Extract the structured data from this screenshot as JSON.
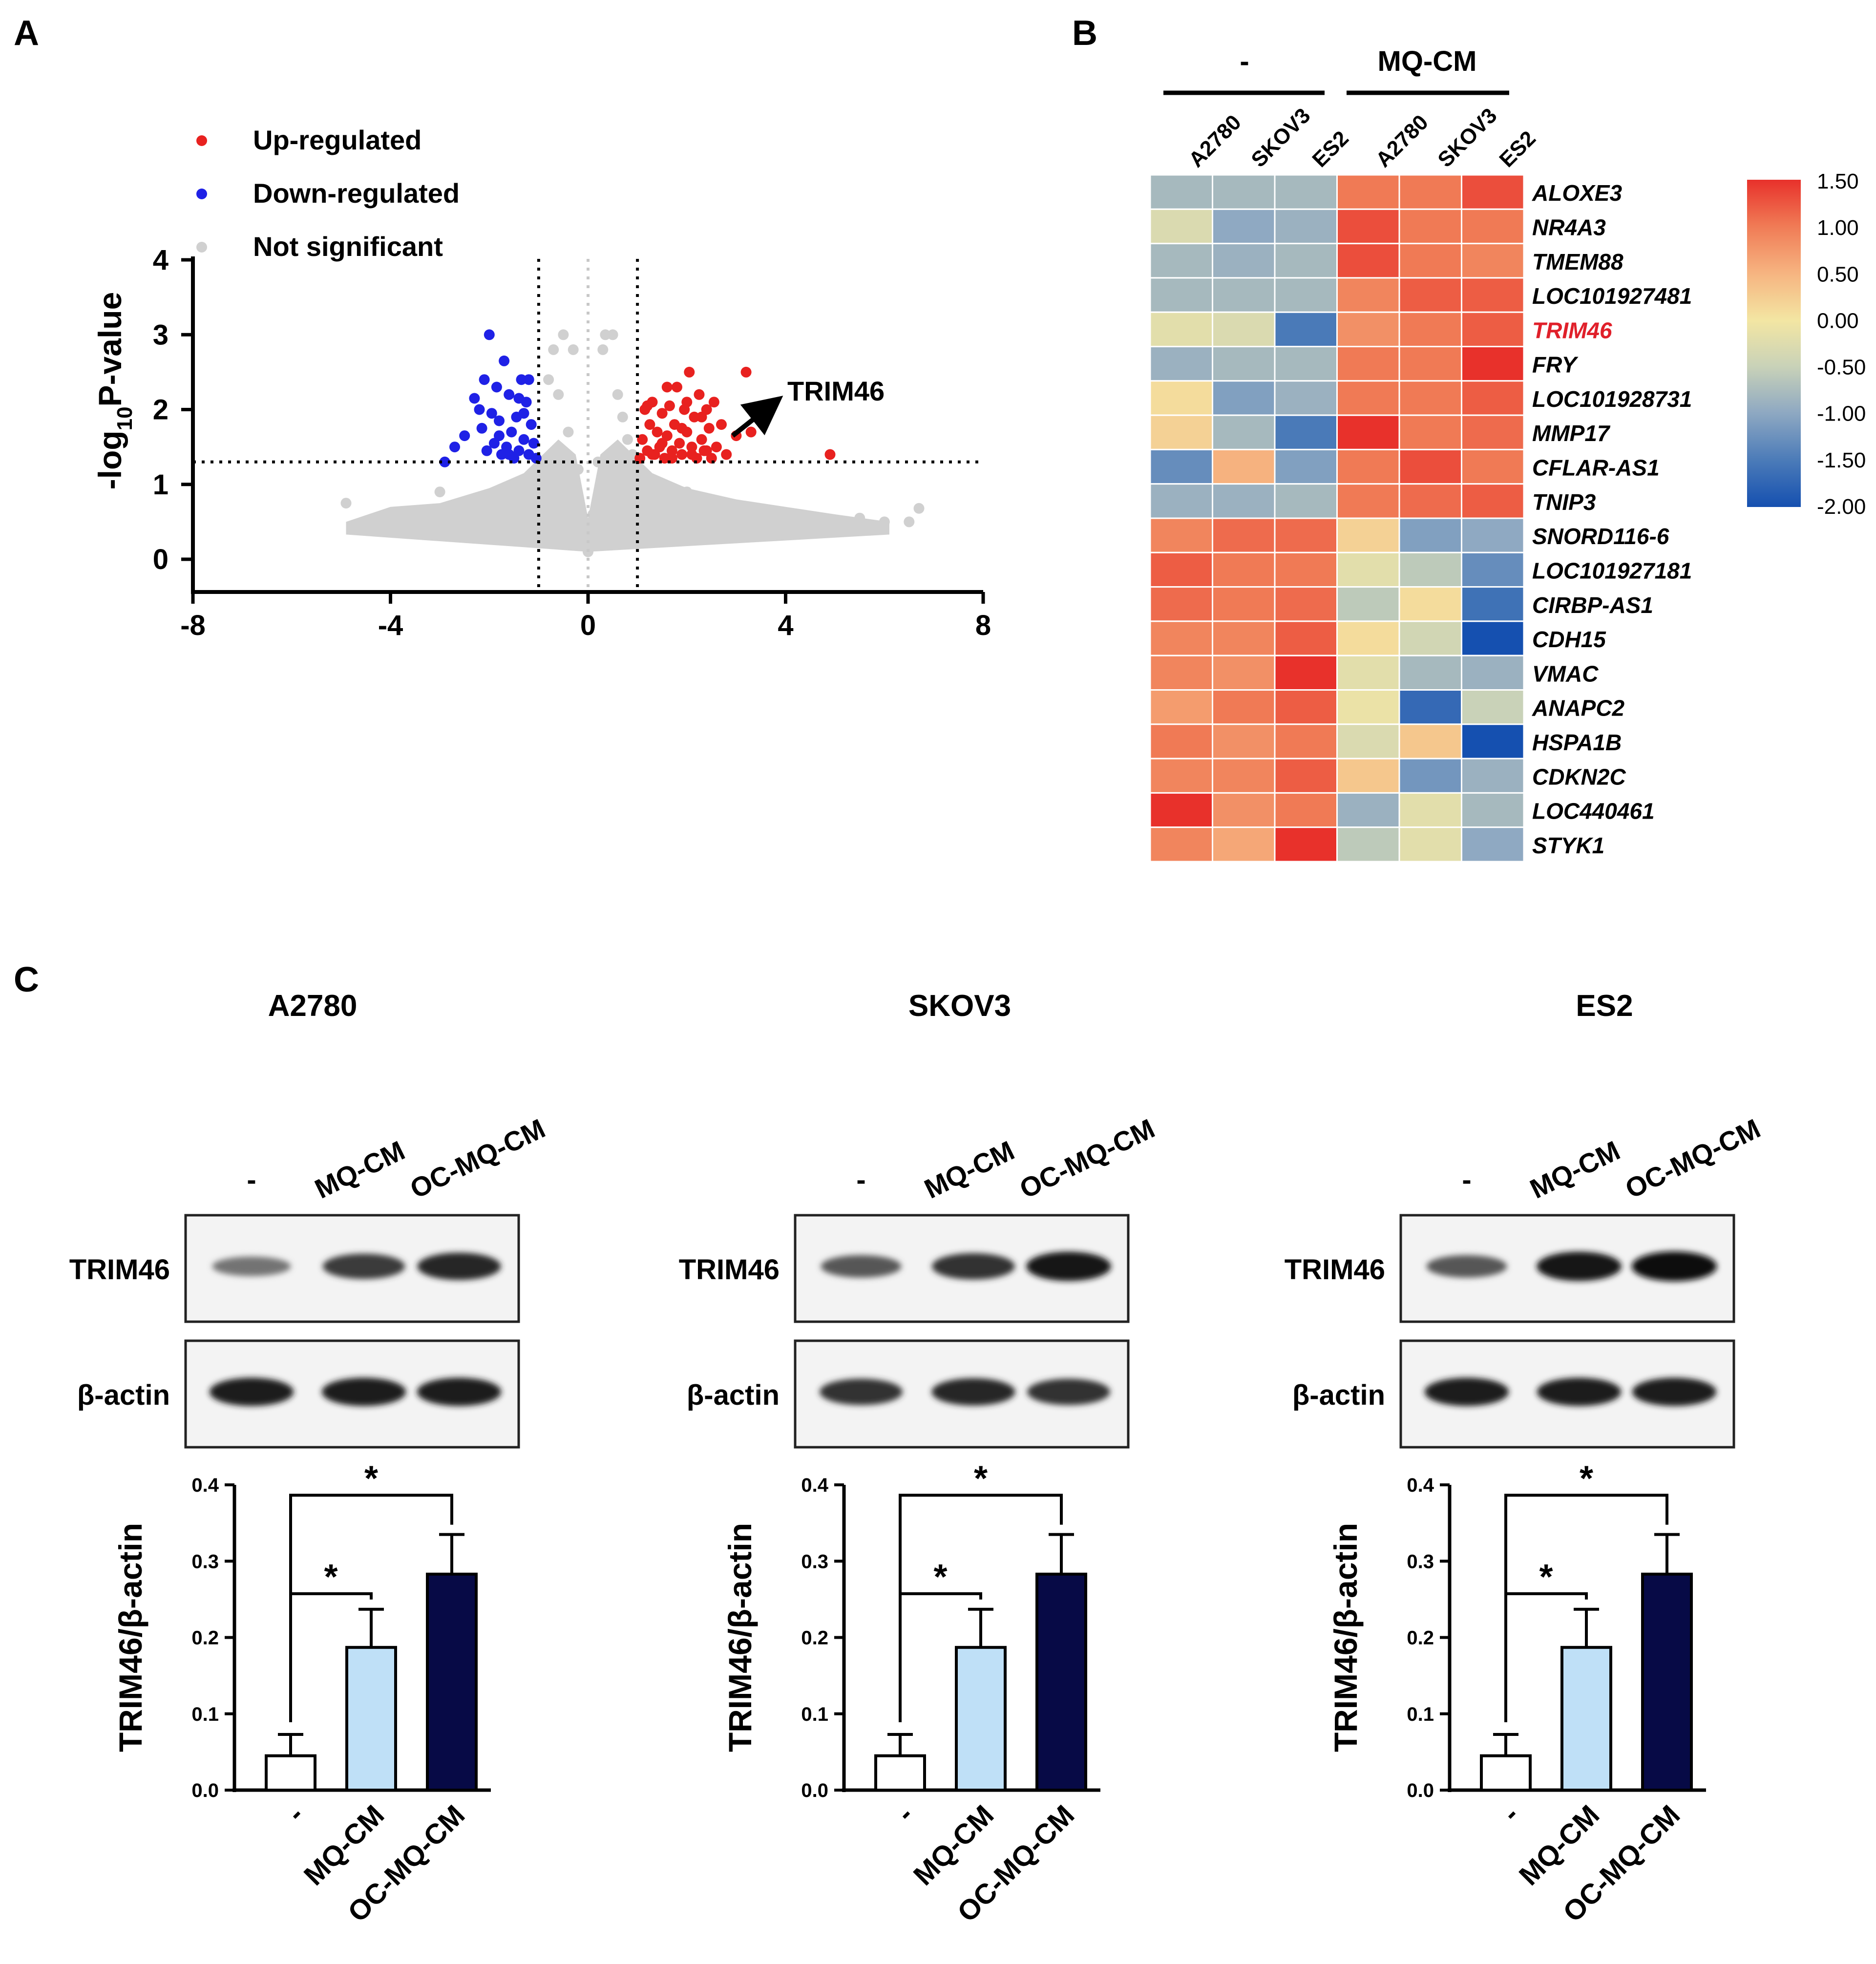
{
  "colors": {
    "up": "#e8211f",
    "down": "#1f21e6",
    "ns": "#d0d0d0",
    "bar_control": "#ffffff",
    "bar_mq": "#bfe0f7",
    "bar_oc": "#070a46",
    "red_label": "#e0202a"
  },
  "panel_labels": {
    "a": "A",
    "b": "B",
    "c": "C"
  },
  "chart_data": [
    {
      "id": "volcano",
      "type": "scatter",
      "title": "",
      "xlabel": "",
      "ylabel_main": "-log",
      "ylabel_sub": "10",
      "ylabel_rest": "P-value",
      "xlim": [
        -8,
        8
      ],
      "ylim": [
        -0.5,
        4.0
      ],
      "xticks": [
        -8,
        -4,
        0,
        4,
        8
      ],
      "yticks": [
        0,
        1,
        2,
        3,
        4
      ],
      "xtick_labels": [
        "-8",
        "-4",
        "0",
        "4",
        "8"
      ],
      "ytick_labels": [
        "0",
        "1",
        "2",
        "3",
        "4"
      ],
      "threshold_fc": 1,
      "threshold_p": 1.3,
      "legend": [
        {
          "label": "Up-regulated",
          "color": "#e8211f"
        },
        {
          "label": "Down-regulated",
          "color": "#1f21e6"
        },
        {
          "label": "Not significant",
          "color": "#d0d0d0"
        }
      ],
      "annotation": {
        "text": "TRIM46",
        "x": 2.8,
        "y": 1.7
      },
      "series": [
        {
          "name": "Up-regulated",
          "points": [
            [
              1.05,
              1.35
            ],
            [
              1.1,
              1.6
            ],
            [
              1.15,
              2.0
            ],
            [
              1.2,
              1.45
            ],
            [
              1.25,
              1.8
            ],
            [
              1.3,
              2.1
            ],
            [
              1.35,
              1.4
            ],
            [
              1.4,
              1.7
            ],
            [
              1.45,
              1.5
            ],
            [
              1.5,
              1.95
            ],
            [
              1.55,
              1.35
            ],
            [
              1.6,
              1.65
            ],
            [
              1.65,
              2.05
            ],
            [
              1.7,
              1.45
            ],
            [
              1.75,
              1.8
            ],
            [
              1.8,
              2.3
            ],
            [
              1.85,
              1.55
            ],
            [
              1.9,
              1.4
            ],
            [
              1.95,
              2.0
            ],
            [
              2.0,
              1.7
            ],
            [
              2.05,
              2.5
            ],
            [
              2.1,
              1.5
            ],
            [
              2.15,
              1.9
            ],
            [
              2.2,
              1.35
            ],
            [
              2.25,
              2.2
            ],
            [
              2.3,
              1.6
            ],
            [
              2.35,
              1.45
            ],
            [
              2.4,
              2.0
            ],
            [
              2.45,
              1.75
            ],
            [
              2.5,
              1.35
            ],
            [
              2.55,
              2.1
            ],
            [
              2.6,
              1.5
            ],
            [
              2.7,
              1.8
            ],
            [
              2.8,
              1.4
            ],
            [
              3.0,
              1.65
            ],
            [
              3.2,
              2.5
            ],
            [
              3.3,
              1.7
            ],
            [
              1.3,
              1.4
            ],
            [
              1.5,
              1.55
            ],
            [
              1.7,
              1.35
            ],
            [
              1.9,
              1.75
            ],
            [
              2.1,
              1.4
            ],
            [
              2.3,
              1.9
            ],
            [
              1.2,
              2.05
            ],
            [
              1.6,
              2.3
            ],
            [
              2.0,
              2.1
            ],
            [
              2.4,
              1.45
            ],
            [
              4.9,
              1.4
            ]
          ]
        },
        {
          "name": "Down-regulated",
          "points": [
            [
              -1.05,
              1.35
            ],
            [
              -1.1,
              1.55
            ],
            [
              -1.15,
              1.8
            ],
            [
              -1.2,
              1.4
            ],
            [
              -1.25,
              2.1
            ],
            [
              -1.3,
              1.6
            ],
            [
              -1.35,
              2.4
            ],
            [
              -1.4,
              1.45
            ],
            [
              -1.45,
              1.9
            ],
            [
              -1.5,
              1.35
            ],
            [
              -1.55,
              1.7
            ],
            [
              -1.6,
              2.2
            ],
            [
              -1.65,
              1.5
            ],
            [
              -1.7,
              2.65
            ],
            [
              -1.75,
              1.4
            ],
            [
              -1.8,
              1.85
            ],
            [
              -1.85,
              2.3
            ],
            [
              -1.9,
              1.55
            ],
            [
              -1.95,
              1.95
            ],
            [
              -2.0,
              3.0
            ],
            [
              -2.05,
              1.45
            ],
            [
              -2.1,
              2.4
            ],
            [
              -2.15,
              1.75
            ],
            [
              -2.2,
              2.0
            ],
            [
              -2.3,
              2.15
            ],
            [
              -2.5,
              1.65
            ],
            [
              -2.7,
              1.5
            ],
            [
              -2.9,
              1.3
            ],
            [
              -1.2,
              2.4
            ],
            [
              -1.4,
              2.15
            ],
            [
              -1.6,
              1.4
            ],
            [
              -1.8,
              1.65
            ],
            [
              -1.3,
              1.95
            ]
          ]
        },
        {
          "name": "Not significant",
          "points": [
            [
              -0.9,
              1.2
            ],
            [
              -0.7,
              2.8
            ],
            [
              -0.5,
              3.0
            ],
            [
              -0.3,
              2.8
            ],
            [
              0.3,
              2.8
            ],
            [
              0.35,
              3.0
            ],
            [
              0.5,
              3.0
            ],
            [
              0.6,
              2.2
            ],
            [
              0.7,
              1.9
            ],
            [
              0.8,
              1.6
            ],
            [
              0.9,
              1.4
            ],
            [
              -0.8,
              2.4
            ],
            [
              -0.6,
              2.2
            ],
            [
              -0.4,
              1.7
            ],
            [
              -0.2,
              1.2
            ],
            [
              0.2,
              1.3
            ],
            [
              0.4,
              1.1
            ],
            [
              0.1,
              0.6
            ],
            [
              -0.1,
              0.5
            ],
            [
              0.0,
              0.1
            ],
            [
              -4.9,
              0.75
            ],
            [
              -4.5,
              0.4
            ],
            [
              -4.3,
              0.5
            ],
            [
              -3.5,
              0.6
            ],
            [
              -3.0,
              0.9
            ],
            [
              -2.5,
              0.7
            ],
            [
              -2.0,
              0.8
            ],
            [
              -1.5,
              1.0
            ],
            [
              -1.0,
              0.9
            ],
            [
              1.0,
              0.8
            ],
            [
              1.5,
              1.0
            ],
            [
              2.0,
              0.9
            ],
            [
              2.5,
              0.8
            ],
            [
              3.0,
              0.7
            ],
            [
              3.5,
              0.6
            ],
            [
              4.0,
              0.55
            ],
            [
              4.5,
              0.5
            ],
            [
              5.0,
              0.45
            ],
            [
              5.5,
              0.55
            ],
            [
              6.0,
              0.5
            ],
            [
              6.5,
              0.5
            ],
            [
              6.7,
              0.68
            ],
            [
              -3.0,
              0.5
            ],
            [
              -2.0,
              0.55
            ],
            [
              2.0,
              0.6
            ],
            [
              3.0,
              0.55
            ]
          ]
        }
      ]
    },
    {
      "id": "heatmap",
      "type": "heatmap",
      "group_labels": [
        "-",
        "MQ-CM"
      ],
      "columns": [
        "A2780",
        "SKOV3",
        "ES2",
        "A2780",
        "SKOV3",
        "ES2"
      ],
      "rows": [
        "ALOXE3",
        "NR4A3",
        "TMEM88",
        "LOC101927481",
        "TRIM46",
        "FRY",
        "LOC101928731",
        "MMP17",
        "CFLAR-AS1",
        "TNIP3",
        "SNORD116-6",
        "LOC101927181",
        "CIRBP-AS1",
        "CDH15",
        "VMAC",
        "ANAPC2",
        "HSPA1B",
        "CDKN2C",
        "LOC440461",
        "STYK1"
      ],
      "highlight_row": "TRIM46",
      "values": [
        [
          -0.8,
          -0.8,
          -0.8,
          1.0,
          1.0,
          1.3
        ],
        [
          -0.3,
          -1.0,
          -0.9,
          1.3,
          1.0,
          1.0
        ],
        [
          -0.8,
          -0.9,
          -0.8,
          1.3,
          1.0,
          0.9
        ],
        [
          -0.8,
          -0.8,
          -0.8,
          0.9,
          1.2,
          1.2
        ],
        [
          -0.2,
          -0.3,
          -1.5,
          0.8,
          1.0,
          1.2
        ],
        [
          -0.9,
          -0.8,
          -0.8,
          1.0,
          1.0,
          1.5
        ],
        [
          0.1,
          -1.1,
          -0.9,
          1.0,
          1.0,
          1.2
        ],
        [
          0.2,
          -0.8,
          -1.5,
          1.5,
          1.0,
          1.1
        ],
        [
          -1.3,
          0.5,
          -1.1,
          1.0,
          1.3,
          1.0
        ],
        [
          -0.9,
          -0.9,
          -0.8,
          1.0,
          1.1,
          1.2
        ],
        [
          0.9,
          1.1,
          1.1,
          0.2,
          -1.1,
          -1.0
        ],
        [
          1.2,
          1.0,
          1.0,
          -0.2,
          -0.6,
          -1.3
        ],
        [
          1.1,
          1.0,
          1.1,
          -0.6,
          0.1,
          -1.6
        ],
        [
          0.9,
          0.9,
          1.2,
          0.1,
          -0.4,
          -2.0
        ],
        [
          0.9,
          0.8,
          1.5,
          -0.2,
          -0.8,
          -0.9
        ],
        [
          0.7,
          1.0,
          1.2,
          -0.1,
          -1.7,
          -0.5
        ],
        [
          1.0,
          0.8,
          1.0,
          -0.3,
          0.3,
          -2.0
        ],
        [
          0.9,
          0.9,
          1.2,
          0.3,
          -1.2,
          -0.9
        ],
        [
          1.5,
          0.8,
          1.0,
          -0.9,
          -0.2,
          -0.8
        ],
        [
          0.9,
          0.6,
          1.5,
          -0.6,
          -0.2,
          -1.0
        ]
      ],
      "colorbar_ticks": [
        1.5,
        1.0,
        0.5,
        0.0,
        -0.5,
        -1.0,
        -1.5,
        -2.0
      ],
      "colorbar_labels": [
        "1.50",
        "1.00",
        "0.50",
        "0.00",
        "-0.50",
        "-1.00",
        "-1.50",
        "-2.00"
      ],
      "vmin": -2.0,
      "vmax": 1.5
    },
    {
      "id": "bar-a2780",
      "type": "bar",
      "title": "A2780",
      "ylabel": "TRIM46/β-actin",
      "ylim": [
        0,
        0.4
      ],
      "yticks": [
        0,
        0.1,
        0.2,
        0.3,
        0.4
      ],
      "ytick_labels": [
        "0.0",
        "0.1",
        "0.2",
        "0.3",
        "0.4"
      ],
      "categories": [
        "-",
        "MQ-CM",
        "OC-MQ-CM"
      ],
      "values": [
        0.045,
        0.187,
        0.283
      ],
      "errors": [
        0.028,
        0.05,
        0.052
      ],
      "significance": [
        {
          "from": 0,
          "to": 1,
          "label": "*"
        },
        {
          "from": 0,
          "to": 2,
          "label": "*"
        }
      ]
    },
    {
      "id": "bar-skov3",
      "type": "bar",
      "title": "SKOV3",
      "ylabel": "TRIM46/β-actin",
      "ylim": [
        0,
        0.4
      ],
      "yticks": [
        0,
        0.1,
        0.2,
        0.3,
        0.4
      ],
      "ytick_labels": [
        "0.0",
        "0.1",
        "0.2",
        "0.3",
        "0.4"
      ],
      "categories": [
        "-",
        "MQ-CM",
        "OC-MQ-CM"
      ],
      "values": [
        0.045,
        0.187,
        0.283
      ],
      "errors": [
        0.028,
        0.05,
        0.052
      ],
      "significance": [
        {
          "from": 0,
          "to": 1,
          "label": "*"
        },
        {
          "from": 0,
          "to": 2,
          "label": "*"
        }
      ]
    },
    {
      "id": "bar-es2",
      "type": "bar",
      "title": "ES2",
      "ylabel": "TRIM46/β-actin",
      "ylim": [
        0,
        0.4
      ],
      "yticks": [
        0,
        0.1,
        0.2,
        0.3,
        0.4
      ],
      "ytick_labels": [
        "0.0",
        "0.1",
        "0.2",
        "0.3",
        "0.4"
      ],
      "categories": [
        "-",
        "MQ-CM",
        "OC-MQ-CM"
      ],
      "values": [
        0.045,
        0.187,
        0.283
      ],
      "errors": [
        0.028,
        0.05,
        0.052
      ],
      "significance": [
        {
          "from": 0,
          "to": 1,
          "label": "*"
        },
        {
          "from": 0,
          "to": 2,
          "label": "*"
        }
      ]
    }
  ],
  "blots": [
    {
      "cell_line": "A2780",
      "lane_labels": [
        "-",
        "MQ-CM",
        "OC-MQ-CM"
      ],
      "rows": [
        {
          "label": "TRIM46",
          "intensity": [
            0.45,
            0.75,
            0.85
          ]
        },
        {
          "label": "β-actin",
          "intensity": [
            0.9,
            0.9,
            0.9
          ]
        }
      ]
    },
    {
      "cell_line": "SKOV3",
      "lane_labels": [
        "-",
        "MQ-CM",
        "OC-MQ-CM"
      ],
      "rows": [
        {
          "label": "TRIM46",
          "intensity": [
            0.6,
            0.8,
            0.95
          ]
        },
        {
          "label": "β-actin",
          "intensity": [
            0.8,
            0.85,
            0.8
          ]
        }
      ]
    },
    {
      "cell_line": "ES2",
      "lane_labels": [
        "-",
        "MQ-CM",
        "OC-MQ-CM"
      ],
      "rows": [
        {
          "label": "TRIM46",
          "intensity": [
            0.6,
            0.95,
            0.98
          ]
        },
        {
          "label": "β-actin",
          "intensity": [
            0.9,
            0.9,
            0.9
          ]
        }
      ]
    }
  ]
}
